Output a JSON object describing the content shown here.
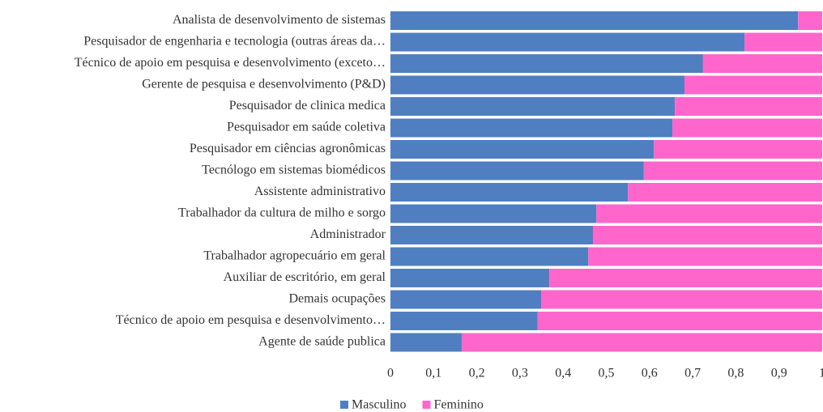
{
  "chart_data": {
    "type": "stacked_bar_horizontal",
    "categories": [
      "Analista de desenvolvimento de sistemas",
      "Pesquisador de engenharia e tecnologia (outras áreas da…",
      "Técnico de apoio em pesquisa e desenvolvimento (exceto…",
      "Gerente de pesquisa e desenvolvimento (P&D)",
      "Pesquisador de clinica medica",
      "Pesquisador em saúde coletiva",
      "Pesquisador em ciências agronômicas",
      "Tecnólogo em sistemas biomédicos",
      "Assistente administrativo",
      "Trabalhador da cultura de milho e sorgo",
      "Administrador",
      "Trabalhador agropecuário em geral",
      "Auxiliar de escritório, em geral",
      "Demais ocupações",
      "Técnico de apoio em pesquisa e desenvolvimento…",
      "Agente de saúde publica"
    ],
    "series": [
      {
        "name": "Masculino",
        "color": "#4f7fc1",
        "values": [
          0.944,
          0.82,
          0.724,
          0.681,
          0.659,
          0.653,
          0.61,
          0.587,
          0.55,
          0.477,
          0.469,
          0.458,
          0.368,
          0.349,
          0.341,
          0.165
        ]
      },
      {
        "name": "Feminino",
        "color": "#ff66cc",
        "values": [
          0.056,
          0.18,
          0.276,
          0.319,
          0.341,
          0.347,
          0.39,
          0.413,
          0.45,
          0.523,
          0.531,
          0.542,
          0.632,
          0.651,
          0.659,
          0.835
        ]
      }
    ],
    "xlim": [
      0,
      1
    ],
    "xticks": [
      0,
      {
        "value": 0.1,
        "label": "0,1"
      },
      {
        "value": 0.2,
        "label": "0,2"
      },
      {
        "value": 0.3,
        "label": "0,3"
      },
      {
        "value": 0.4,
        "label": "0,4"
      },
      {
        "value": 0.5,
        "label": "0,5"
      },
      {
        "value": 0.6,
        "label": "0,6"
      },
      {
        "value": 0.7,
        "label": "0,7"
      },
      {
        "value": 0.8,
        "label": "0,8"
      },
      {
        "value": 0.9,
        "label": "0,9"
      },
      1
    ],
    "legend": "bottom"
  }
}
